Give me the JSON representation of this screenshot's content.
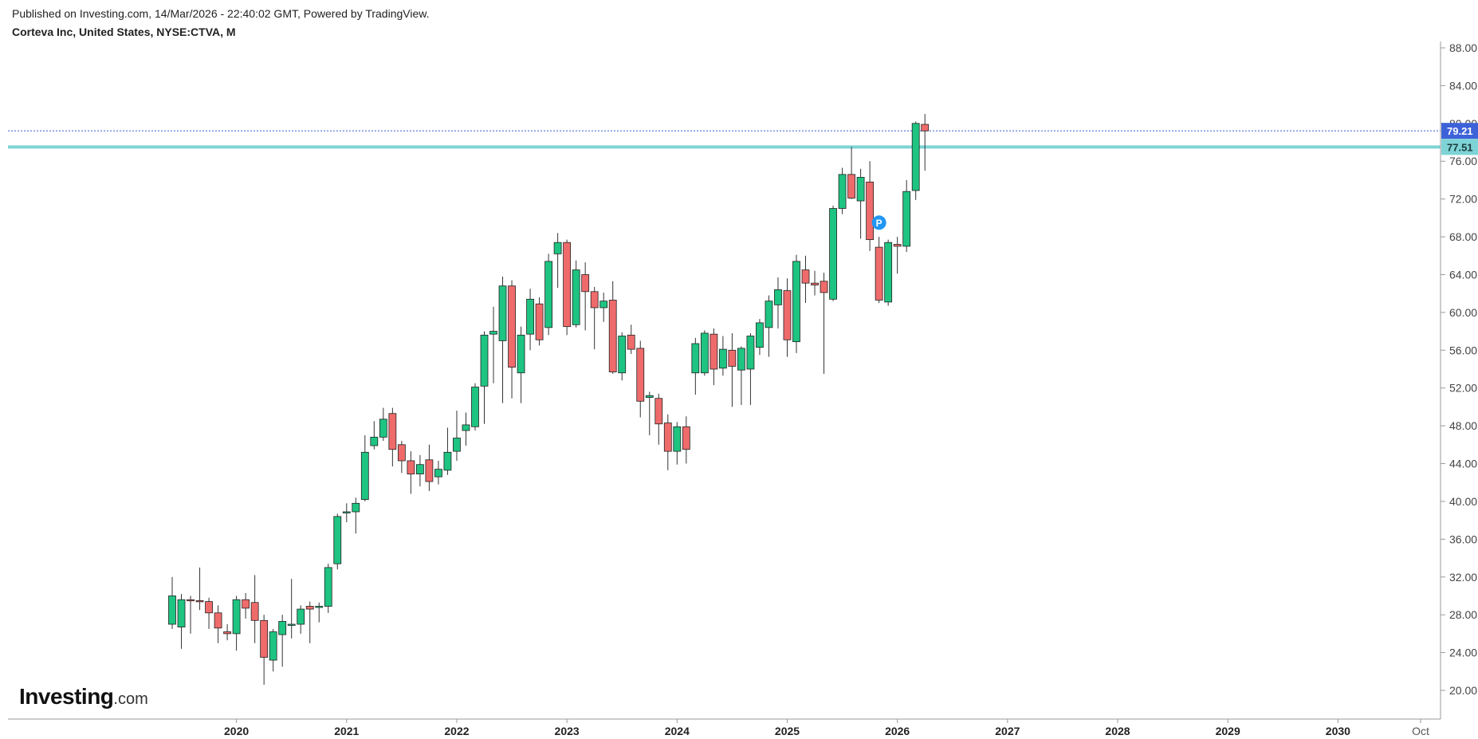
{
  "header": {
    "published": "Published on Investing.com, 14/Mar/2026 - 22:40:02 GMT, Powered by TradingView.",
    "symbol": "Corteva Inc, United States, NYSE:CTVA, M"
  },
  "logo": {
    "main": "Investing",
    "suffix": ".com"
  },
  "colors": {
    "up": "#1ec481",
    "down": "#ef6b6b",
    "wick": "#333333",
    "support": "#7ed3d6",
    "current_price_line": "#3a5bd9",
    "current_tag": "#3d62d8",
    "support_tag": "#7ed3d6",
    "marker": "#2196f3"
  },
  "chart_data": {
    "type": "candlestick",
    "interval": "M",
    "y_axis": {
      "min": 20,
      "max": 88,
      "ticks": [
        "88.00",
        "84.00",
        "80.00",
        "76.00",
        "72.00",
        "68.00",
        "64.00",
        "60.00",
        "56.00",
        "52.00",
        "48.00",
        "44.00",
        "40.00",
        "36.00",
        "32.00",
        "28.00",
        "24.00",
        "20.00"
      ]
    },
    "x_axis": {
      "start": "2019-06",
      "end": "2030-10",
      "labels": [
        {
          "text": "2020",
          "month": "2020-01",
          "bold": true
        },
        {
          "text": "2021",
          "month": "2021-01",
          "bold": true
        },
        {
          "text": "2022",
          "month": "2022-01",
          "bold": true
        },
        {
          "text": "2023",
          "month": "2023-01",
          "bold": true
        },
        {
          "text": "2024",
          "month": "2024-01",
          "bold": true
        },
        {
          "text": "2025",
          "month": "2025-01",
          "bold": true
        },
        {
          "text": "2026",
          "month": "2026-01",
          "bold": true
        },
        {
          "text": "2027",
          "month": "2027-01",
          "bold": true
        },
        {
          "text": "2028",
          "month": "2028-01",
          "bold": true
        },
        {
          "text": "2029",
          "month": "2029-01",
          "bold": true
        },
        {
          "text": "2030",
          "month": "2030-01",
          "bold": true
        },
        {
          "text": "Oct",
          "month": "2030-10",
          "bold": false
        }
      ]
    },
    "current_price": {
      "value": 79.21,
      "label": "79.21"
    },
    "support_level": {
      "value": 77.51,
      "label": "77.51"
    },
    "marker": {
      "month": "2025-11",
      "value": 69.5,
      "label": "P"
    },
    "candles": [
      {
        "m": "2019-06",
        "o": 27.0,
        "h": 32.0,
        "l": 26.5,
        "c": 30.0
      },
      {
        "m": "2019-07",
        "o": 26.7,
        "h": 30.2,
        "l": 24.4,
        "c": 29.6
      },
      {
        "m": "2019-08",
        "o": 29.6,
        "h": 30.0,
        "l": 26.0,
        "c": 29.5
      },
      {
        "m": "2019-09",
        "o": 29.5,
        "h": 33.0,
        "l": 28.5,
        "c": 29.4
      },
      {
        "m": "2019-10",
        "o": 29.4,
        "h": 29.8,
        "l": 26.5,
        "c": 28.2
      },
      {
        "m": "2019-11",
        "o": 28.2,
        "h": 29.0,
        "l": 25.0,
        "c": 26.6
      },
      {
        "m": "2019-12",
        "o": 26.2,
        "h": 27.0,
        "l": 25.3,
        "c": 26.0
      },
      {
        "m": "2020-01",
        "o": 26.0,
        "h": 30.0,
        "l": 24.2,
        "c": 29.6
      },
      {
        "m": "2020-02",
        "o": 29.6,
        "h": 30.3,
        "l": 27.6,
        "c": 28.7
      },
      {
        "m": "2020-03",
        "o": 29.3,
        "h": 32.2,
        "l": 25.0,
        "c": 27.4
      },
      {
        "m": "2020-04",
        "o": 27.4,
        "h": 28.0,
        "l": 20.6,
        "c": 23.5
      },
      {
        "m": "2020-05",
        "o": 23.2,
        "h": 26.5,
        "l": 22.0,
        "c": 26.2
      },
      {
        "m": "2020-06",
        "o": 25.9,
        "h": 28.0,
        "l": 22.5,
        "c": 27.3
      },
      {
        "m": "2020-07",
        "o": 26.9,
        "h": 31.8,
        "l": 25.5,
        "c": 27.0
      },
      {
        "m": "2020-08",
        "o": 27.0,
        "h": 29.0,
        "l": 26.0,
        "c": 28.6
      },
      {
        "m": "2020-09",
        "o": 28.9,
        "h": 29.4,
        "l": 25.0,
        "c": 28.6
      },
      {
        "m": "2020-10",
        "o": 28.8,
        "h": 29.3,
        "l": 27.2,
        "c": 28.9
      },
      {
        "m": "2020-11",
        "o": 28.9,
        "h": 33.4,
        "l": 28.2,
        "c": 33.0
      },
      {
        "m": "2020-12",
        "o": 33.4,
        "h": 38.7,
        "l": 32.8,
        "c": 38.4
      },
      {
        "m": "2021-01",
        "o": 38.8,
        "h": 39.8,
        "l": 37.8,
        "c": 38.9
      },
      {
        "m": "2021-02",
        "o": 38.9,
        "h": 40.4,
        "l": 36.6,
        "c": 39.8
      },
      {
        "m": "2021-03",
        "o": 40.2,
        "h": 47.0,
        "l": 40.0,
        "c": 45.2
      },
      {
        "m": "2021-04",
        "o": 45.9,
        "h": 48.5,
        "l": 45.5,
        "c": 46.8
      },
      {
        "m": "2021-05",
        "o": 46.8,
        "h": 49.9,
        "l": 46.4,
        "c": 48.7
      },
      {
        "m": "2021-06",
        "o": 49.3,
        "h": 49.9,
        "l": 43.7,
        "c": 45.5
      },
      {
        "m": "2021-07",
        "o": 46.0,
        "h": 46.4,
        "l": 43.0,
        "c": 44.3
      },
      {
        "m": "2021-08",
        "o": 44.3,
        "h": 45.3,
        "l": 40.8,
        "c": 42.9
      },
      {
        "m": "2021-09",
        "o": 42.9,
        "h": 44.9,
        "l": 41.6,
        "c": 43.9
      },
      {
        "m": "2021-10",
        "o": 44.4,
        "h": 46.0,
        "l": 41.1,
        "c": 42.1
      },
      {
        "m": "2021-11",
        "o": 42.6,
        "h": 44.3,
        "l": 41.8,
        "c": 43.4
      },
      {
        "m": "2021-12",
        "o": 43.3,
        "h": 47.8,
        "l": 42.8,
        "c": 45.2
      },
      {
        "m": "2022-01",
        "o": 45.3,
        "h": 49.6,
        "l": 44.3,
        "c": 46.7
      },
      {
        "m": "2022-02",
        "o": 47.5,
        "h": 49.4,
        "l": 45.9,
        "c": 48.1
      },
      {
        "m": "2022-03",
        "o": 47.9,
        "h": 52.5,
        "l": 47.5,
        "c": 52.1
      },
      {
        "m": "2022-04",
        "o": 52.2,
        "h": 58.0,
        "l": 48.2,
        "c": 57.6
      },
      {
        "m": "2022-05",
        "o": 57.7,
        "h": 60.6,
        "l": 52.5,
        "c": 58.0
      },
      {
        "m": "2022-06",
        "o": 57.0,
        "h": 63.8,
        "l": 50.4,
        "c": 62.8
      },
      {
        "m": "2022-07",
        "o": 62.8,
        "h": 63.4,
        "l": 50.9,
        "c": 54.2
      },
      {
        "m": "2022-08",
        "o": 53.6,
        "h": 58.5,
        "l": 50.4,
        "c": 57.6
      },
      {
        "m": "2022-09",
        "o": 57.7,
        "h": 62.5,
        "l": 56.0,
        "c": 61.4
      },
      {
        "m": "2022-10",
        "o": 60.9,
        "h": 61.6,
        "l": 56.5,
        "c": 57.1
      },
      {
        "m": "2022-11",
        "o": 58.4,
        "h": 66.2,
        "l": 57.6,
        "c": 65.4
      },
      {
        "m": "2022-12",
        "o": 66.2,
        "h": 68.4,
        "l": 62.6,
        "c": 67.4
      },
      {
        "m": "2023-01",
        "o": 67.4,
        "h": 67.7,
        "l": 57.6,
        "c": 58.5
      },
      {
        "m": "2023-02",
        "o": 58.7,
        "h": 65.5,
        "l": 58.4,
        "c": 64.5
      },
      {
        "m": "2023-03",
        "o": 64.0,
        "h": 65.3,
        "l": 58.1,
        "c": 62.2
      },
      {
        "m": "2023-04",
        "o": 62.2,
        "h": 62.7,
        "l": 56.1,
        "c": 60.5
      },
      {
        "m": "2023-05",
        "o": 60.5,
        "h": 62.1,
        "l": 59.0,
        "c": 61.2
      },
      {
        "m": "2023-06",
        "o": 61.3,
        "h": 63.3,
        "l": 53.5,
        "c": 53.7
      },
      {
        "m": "2023-07",
        "o": 53.6,
        "h": 57.9,
        "l": 52.8,
        "c": 57.5
      },
      {
        "m": "2023-08",
        "o": 57.6,
        "h": 58.7,
        "l": 55.6,
        "c": 56.1
      },
      {
        "m": "2023-09",
        "o": 56.2,
        "h": 57.0,
        "l": 48.9,
        "c": 50.6
      },
      {
        "m": "2023-10",
        "o": 51.0,
        "h": 51.6,
        "l": 47.0,
        "c": 51.2
      },
      {
        "m": "2023-11",
        "o": 50.9,
        "h": 51.4,
        "l": 46.0,
        "c": 48.2
      },
      {
        "m": "2023-12",
        "o": 48.3,
        "h": 49.2,
        "l": 43.3,
        "c": 45.3
      },
      {
        "m": "2024-01",
        "o": 45.3,
        "h": 48.4,
        "l": 43.9,
        "c": 47.9
      },
      {
        "m": "2024-02",
        "o": 47.9,
        "h": 49.0,
        "l": 44.0,
        "c": 45.5
      },
      {
        "m": "2024-03",
        "o": 53.6,
        "h": 57.3,
        "l": 51.3,
        "c": 56.7
      },
      {
        "m": "2024-04",
        "o": 53.6,
        "h": 58.1,
        "l": 53.3,
        "c": 57.8
      },
      {
        "m": "2024-05",
        "o": 57.7,
        "h": 58.3,
        "l": 52.3,
        "c": 54.0
      },
      {
        "m": "2024-06",
        "o": 54.1,
        "h": 57.5,
        "l": 53.3,
        "c": 56.1
      },
      {
        "m": "2024-07",
        "o": 56.0,
        "h": 57.8,
        "l": 50.0,
        "c": 54.3
      },
      {
        "m": "2024-08",
        "o": 53.9,
        "h": 56.4,
        "l": 50.2,
        "c": 56.2
      },
      {
        "m": "2024-09",
        "o": 54.0,
        "h": 57.8,
        "l": 50.2,
        "c": 57.5
      },
      {
        "m": "2024-10",
        "o": 56.3,
        "h": 59.3,
        "l": 55.5,
        "c": 58.9
      },
      {
        "m": "2024-11",
        "o": 58.4,
        "h": 61.8,
        "l": 55.3,
        "c": 61.2
      },
      {
        "m": "2024-12",
        "o": 60.8,
        "h": 63.7,
        "l": 58.3,
        "c": 62.4
      },
      {
        "m": "2025-01",
        "o": 62.3,
        "h": 63.6,
        "l": 55.3,
        "c": 57.1
      },
      {
        "m": "2025-02",
        "o": 56.9,
        "h": 66.1,
        "l": 55.7,
        "c": 65.4
      },
      {
        "m": "2025-03",
        "o": 64.5,
        "h": 66.0,
        "l": 61.0,
        "c": 63.1
      },
      {
        "m": "2025-04",
        "o": 63.1,
        "h": 64.4,
        "l": 61.8,
        "c": 62.9
      },
      {
        "m": "2025-05",
        "o": 63.3,
        "h": 64.2,
        "l": 53.5,
        "c": 62.1
      },
      {
        "m": "2025-06",
        "o": 61.4,
        "h": 71.3,
        "l": 61.2,
        "c": 71.0
      },
      {
        "m": "2025-07",
        "o": 71.0,
        "h": 75.3,
        "l": 70.4,
        "c": 74.6
      },
      {
        "m": "2025-08",
        "o": 74.6,
        "h": 77.5,
        "l": 72.0,
        "c": 72.1
      },
      {
        "m": "2025-09",
        "o": 71.8,
        "h": 75.2,
        "l": 67.8,
        "c": 74.3
      },
      {
        "m": "2025-10",
        "o": 73.8,
        "h": 76.0,
        "l": 66.5,
        "c": 67.7
      },
      {
        "m": "2025-11",
        "o": 66.9,
        "h": 68.0,
        "l": 61.0,
        "c": 61.3
      },
      {
        "m": "2025-12",
        "o": 61.1,
        "h": 67.7,
        "l": 60.7,
        "c": 67.4
      },
      {
        "m": "2026-01",
        "o": 67.2,
        "h": 68.0,
        "l": 64.1,
        "c": 67.0
      },
      {
        "m": "2026-02",
        "o": 67.0,
        "h": 74.0,
        "l": 66.4,
        "c": 72.8
      },
      {
        "m": "2026-03",
        "o": 72.9,
        "h": 80.2,
        "l": 71.9,
        "c": 80.0
      },
      {
        "m": "2026-04",
        "o": 79.9,
        "h": 81.0,
        "l": 75.0,
        "c": 79.21
      }
    ]
  }
}
